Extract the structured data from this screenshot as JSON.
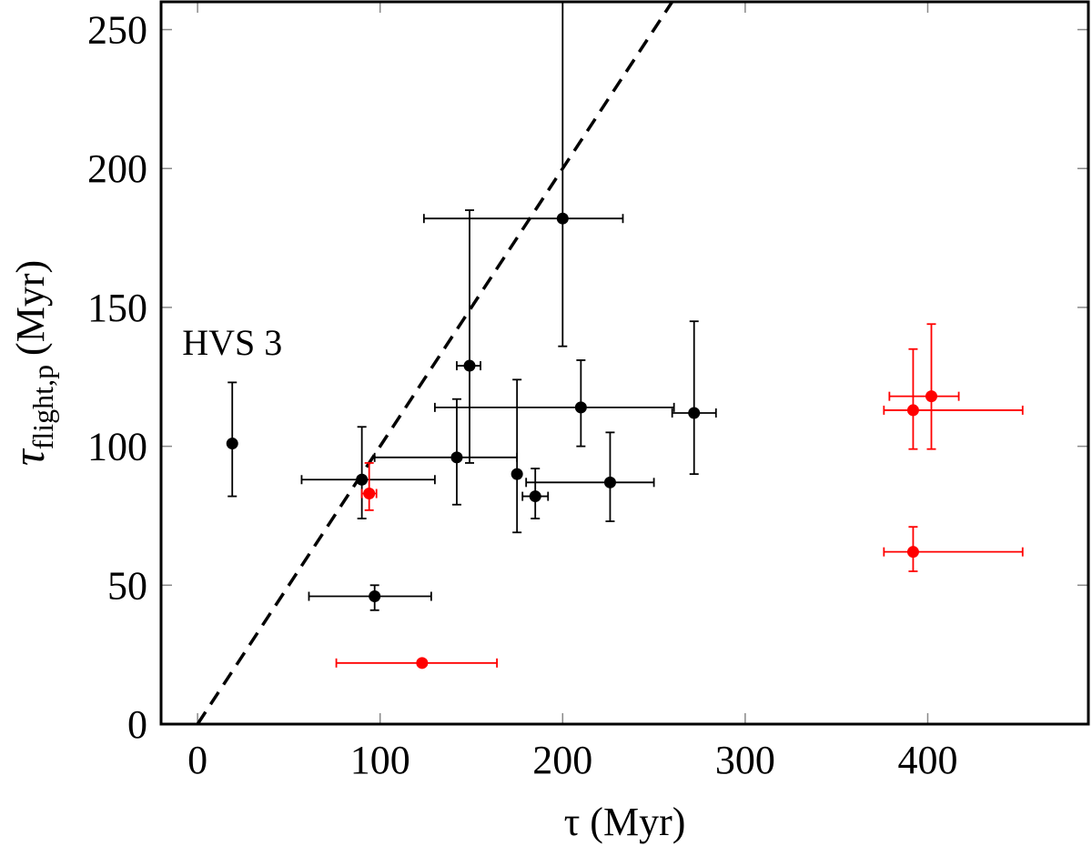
{
  "chart_data": {
    "type": "scatter",
    "title": "",
    "xlabel": "τ (Myr)",
    "ylabel": "τflight,p (Myr)",
    "ylabel_main": "τ",
    "ylabel_sub": "flight,p",
    "ylabel_unit": "(Myr)",
    "xlim": [
      -20,
      488
    ],
    "ylim": [
      0,
      260
    ],
    "xticks": [
      0,
      100,
      200,
      300,
      400
    ],
    "yticks": [
      0,
      50,
      100,
      150,
      200,
      250
    ],
    "grid": false,
    "reference_line": {
      "style": "dashed",
      "color": "#000000",
      "slope": 1,
      "intercept": 0,
      "label": ""
    },
    "annotations": [
      {
        "text": "HVS 3",
        "x": 19,
        "y": 133
      }
    ],
    "series": [
      {
        "name": "black",
        "color": "#000000",
        "points": [
          {
            "x": 19,
            "y": 101,
            "xerr": [
              0,
              0
            ],
            "yerr": [
              19,
              22
            ]
          },
          {
            "x": 90,
            "y": 88,
            "xerr": [
              33,
              40
            ],
            "yerr": [
              14,
              19
            ]
          },
          {
            "x": 97,
            "y": 46,
            "xerr": [
              36,
              31
            ],
            "yerr": [
              5,
              4
            ]
          },
          {
            "x": 142,
            "y": 96,
            "xerr": [
              45,
              33
            ],
            "yerr": [
              17,
              21
            ]
          },
          {
            "x": 149,
            "y": 129,
            "xerr": [
              7,
              6
            ],
            "yerr": [
              35,
              56
            ]
          },
          {
            "x": 175,
            "y": 90,
            "xerr": [
              0,
              0
            ],
            "yerr": [
              21,
              34
            ]
          },
          {
            "x": 185,
            "y": 82,
            "xerr": [
              7,
              7
            ],
            "yerr": [
              8,
              10
            ]
          },
          {
            "x": 200,
            "y": 182,
            "xerr": [
              76,
              33
            ],
            "yerr": [
              46,
              78
            ]
          },
          {
            "x": 210,
            "y": 114,
            "xerr": [
              80,
              51
            ],
            "yerr": [
              14,
              17
            ]
          },
          {
            "x": 226,
            "y": 87,
            "xerr": [
              46,
              24
            ],
            "yerr": [
              14,
              18
            ]
          },
          {
            "x": 272,
            "y": 112,
            "xerr": [
              12,
              12
            ],
            "yerr": [
              22,
              33
            ]
          }
        ]
      },
      {
        "name": "red",
        "color": "#ff0000",
        "points": [
          {
            "x": 94,
            "y": 83,
            "xerr": [
              4,
              4
            ],
            "yerr": [
              6,
              11
            ]
          },
          {
            "x": 123,
            "y": 22,
            "xerr": [
              47,
              41
            ],
            "yerr": [
              0,
              0
            ]
          },
          {
            "x": 392,
            "y": 113,
            "xerr": [
              16,
              60
            ],
            "yerr": [
              14,
              22
            ]
          },
          {
            "x": 402,
            "y": 118,
            "xerr": [
              23,
              15
            ],
            "yerr": [
              19,
              26
            ]
          },
          {
            "x": 392,
            "y": 62,
            "xerr": [
              16,
              60
            ],
            "yerr": [
              7,
              9
            ]
          }
        ]
      }
    ]
  }
}
